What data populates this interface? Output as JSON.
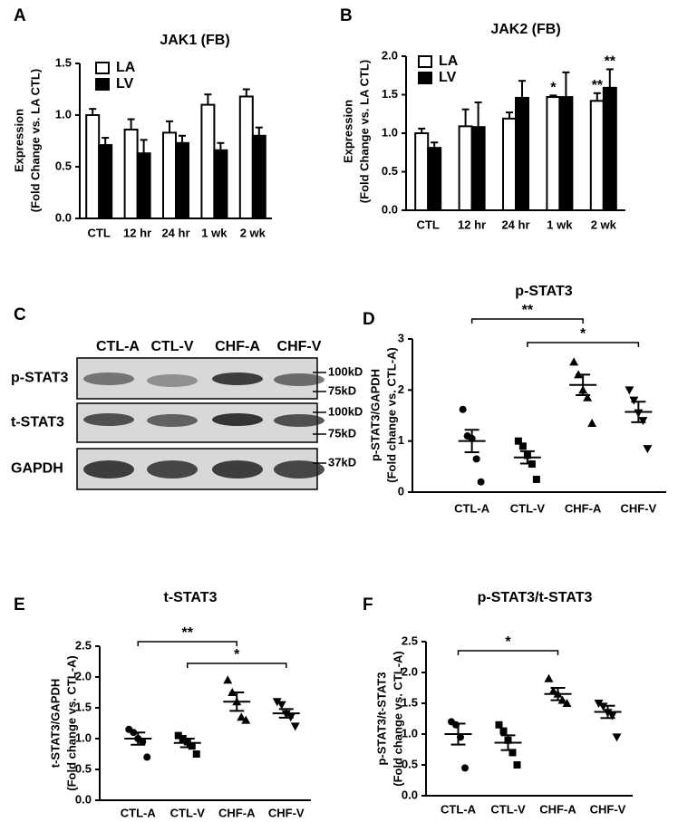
{
  "chart_data": [
    {
      "type": "bar",
      "label": "A",
      "title": "JAK1 (FB)",
      "ylabel": [
        "Expression",
        "(Fold Change vs. LA CTL)"
      ],
      "categories": [
        "CTL",
        "12 hr",
        "24 hr",
        "1 wk",
        "2 wk"
      ],
      "series": [
        {
          "name": "LA",
          "color": "#ffffff",
          "values": [
            1.0,
            0.86,
            0.83,
            1.1,
            1.18
          ],
          "errors": [
            0.06,
            0.1,
            0.11,
            0.1,
            0.07
          ]
        },
        {
          "name": "LV",
          "color": "#000000",
          "values": [
            0.71,
            0.63,
            0.73,
            0.66,
            0.8
          ],
          "errors": [
            0.07,
            0.13,
            0.07,
            0.07,
            0.08
          ]
        }
      ],
      "ylim": [
        0,
        1.5
      ],
      "yticks": [
        {
          "value": 0,
          "label": "0.0"
        },
        0.5,
        {
          "value": 1,
          "label": "1.0"
        },
        1.5
      ]
    },
    {
      "type": "bar",
      "label": "B",
      "title": "JAK2 (FB)",
      "ylabel": [
        "Expression",
        "(Fold Change vs. LA CTL)"
      ],
      "categories": [
        "CTL",
        "12 hr",
        "24 hr",
        "1 wk",
        "2 wk"
      ],
      "series": [
        {
          "name": "LA",
          "color": "#ffffff",
          "values": [
            1.0,
            1.09,
            1.19,
            1.47,
            1.42
          ],
          "errors": [
            0.06,
            0.22,
            0.08,
            0.02,
            0.1
          ],
          "significance": [
            null,
            null,
            null,
            "*",
            "**"
          ]
        },
        {
          "name": "LV",
          "color": "#000000",
          "values": [
            0.81,
            1.08,
            1.46,
            1.47,
            1.59
          ],
          "errors": [
            0.07,
            0.32,
            0.22,
            0.32,
            0.24
          ],
          "significance": [
            null,
            null,
            null,
            null,
            "**"
          ]
        }
      ],
      "ylim": [
        0,
        2
      ],
      "yticks": [
        {
          "value": 0,
          "label": "0.0"
        },
        0.5,
        {
          "value": 1,
          "label": "1.0"
        },
        1.5,
        {
          "value": 2,
          "label": "2.0"
        }
      ]
    },
    {
      "type": "dot",
      "label": "D",
      "title": "p-STAT3",
      "ylabel": [
        "p-STAT3/GAPDH",
        "(Fold change vs. CTL-A)"
      ],
      "categories": [
        "CTL-A",
        "CTL-V",
        "CHF-A",
        "CHF-V"
      ],
      "groups": [
        {
          "marker": "circle",
          "points": [
            1.62,
            1.1,
            1.05,
            0.65,
            0.2
          ],
          "mean": 1.0,
          "sem": 0.22
        },
        {
          "marker": "square",
          "points": [
            1.0,
            0.9,
            0.72,
            0.55,
            0.25
          ],
          "mean": 0.68,
          "sem": 0.12
        },
        {
          "marker": "triangle-up",
          "points": [
            2.55,
            2.3,
            2.0,
            1.85,
            1.35
          ],
          "mean": 2.1,
          "sem": 0.2
        },
        {
          "marker": "triangle-down",
          "points": [
            2.0,
            1.8,
            1.55,
            1.4,
            0.85
          ],
          "mean": 1.57,
          "sem": 0.2
        }
      ],
      "comparisons": [
        {
          "groups": [
            "CTL-A",
            "CHF-A"
          ],
          "label": "**"
        },
        {
          "groups": [
            "CTL-V",
            "CHF-V"
          ],
          "label": "*"
        }
      ],
      "ylim": [
        0,
        3
      ],
      "yticks": [
        0,
        1,
        2,
        3
      ]
    },
    {
      "type": "dot",
      "label": "E",
      "title": "t-STAT3",
      "ylabel": [
        "t-STAT3/GAPDH",
        "(Fold change vs. CTL-A)"
      ],
      "categories": [
        "CTL-A",
        "CTL-V",
        "CHF-A",
        "CHF-V"
      ],
      "groups": [
        {
          "marker": "circle",
          "points": [
            1.15,
            1.1,
            1.0,
            0.95,
            0.7
          ],
          "mean": 1.0,
          "sem": 0.1
        },
        {
          "marker": "square",
          "points": [
            1.05,
            1.0,
            0.95,
            0.88,
            0.75
          ],
          "mean": 0.93,
          "sem": 0.07
        },
        {
          "marker": "triangle-up",
          "points": [
            1.95,
            1.75,
            1.6,
            1.35,
            1.3
          ],
          "mean": 1.6,
          "sem": 0.15
        },
        {
          "marker": "triangle-down",
          "points": [
            1.6,
            1.55,
            1.4,
            1.35,
            1.2
          ],
          "mean": 1.41,
          "sem": 0.07
        }
      ],
      "comparisons": [
        {
          "groups": [
            "CTL-A",
            "CHF-A"
          ],
          "label": "**"
        },
        {
          "groups": [
            "CTL-V",
            "CHF-V"
          ],
          "label": "*"
        }
      ],
      "ylim": [
        0,
        2.5
      ],
      "yticks": [
        {
          "value": 0,
          "label": "0.0"
        },
        0.5,
        {
          "value": 1,
          "label": "1.0"
        },
        1.5,
        {
          "value": 2,
          "label": "2.0"
        },
        2.5
      ]
    },
    {
      "type": "dot",
      "label": "F",
      "title": "p-STAT3/t-STAT3",
      "ylabel": [
        "p-STAT3/t-STAT3",
        "(Fold change vs. CTL-A)"
      ],
      "categories": [
        "CTL-A",
        "CTL-V",
        "CHF-A",
        "CHF-V"
      ],
      "groups": [
        {
          "marker": "circle",
          "points": [
            1.2,
            1.15,
            0.95,
            0.45
          ],
          "mean": 1.0,
          "sem": 0.17
        },
        {
          "marker": "square",
          "points": [
            1.15,
            1.05,
            0.9,
            0.7,
            0.5
          ],
          "mean": 0.86,
          "sem": 0.12
        },
        {
          "marker": "triangle-up",
          "points": [
            1.9,
            1.7,
            1.65,
            1.55,
            1.5
          ],
          "mean": 1.65,
          "sem": 0.1
        },
        {
          "marker": "triangle-down",
          "points": [
            1.5,
            1.45,
            1.35,
            1.3,
            0.95
          ],
          "mean": 1.36,
          "sem": 0.1
        }
      ],
      "comparisons": [
        {
          "groups": [
            "CTL-A",
            "CHF-A"
          ],
          "label": "*"
        }
      ],
      "ylim": [
        0,
        2.5
      ],
      "yticks": [
        {
          "value": 0,
          "label": "0.0"
        },
        0.5,
        {
          "value": 1,
          "label": "1.0"
        },
        1.5,
        {
          "value": 2,
          "label": "2.0"
        },
        2.5
      ]
    }
  ],
  "blot": {
    "label": "C",
    "columns": [
      "CTL-A",
      "CTL-V",
      "CHF-A",
      "CHF-V"
    ],
    "rows": [
      {
        "name": "p-STAT3",
        "markers": [
          "100kD",
          "75kD"
        ]
      },
      {
        "name": "t-STAT3",
        "markers": [
          "100kD",
          "75kD"
        ]
      },
      {
        "name": "GAPDH",
        "markers": [
          "37kD"
        ]
      }
    ]
  }
}
